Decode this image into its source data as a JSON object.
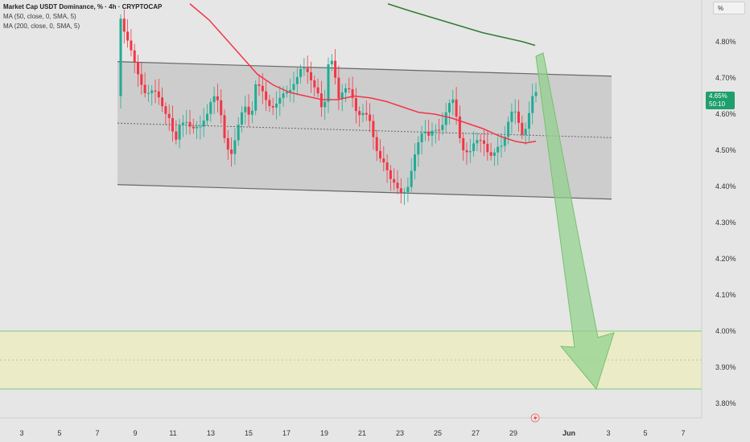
{
  "header": {
    "title": "Market Cap USDT Dominance, % · 4h · CRYPTOCAP",
    "ma50_label": "MA (50, close, 0, SMA, 5)",
    "ma200_label": "MA (200, close, 0, SMA, 5)",
    "unit_button": "%"
  },
  "last_price": {
    "value": "4.65%",
    "countdown": "50:10"
  },
  "colors": {
    "up": "#22ab94",
    "down": "#f23645",
    "ma50": "#f23645",
    "ma200": "#2e7d32",
    "channel": "#c8c8c8",
    "target_zone": "#ecebc8",
    "arrow": "#8fd18a"
  },
  "chart_data": {
    "type": "candlestick",
    "title": "Market Cap USDT Dominance, % · 4h · CRYPTOCAP",
    "y_unit": "%",
    "y_ticks": [
      "4.80%",
      "4.70%",
      "4.60%",
      "4.50%",
      "4.40%",
      "4.30%",
      "4.20%",
      "4.10%",
      "4.00%",
      "3.90%",
      "3.80%"
    ],
    "x_ticks": [
      "3",
      "5",
      "7",
      "9",
      "11",
      "13",
      "15",
      "17",
      "19",
      "21",
      "23",
      "25",
      "27",
      "29",
      "Jun",
      "3",
      "5",
      "7"
    ],
    "ylim": [
      3.78,
      4.905
    ],
    "series": [
      {
        "name": "MA (50, close, 0, SMA, 5)",
        "type": "line",
        "points": [
          [
            236,
            4.905
          ],
          [
            260,
            4.86
          ],
          [
            280,
            4.81
          ],
          [
            300,
            4.76
          ],
          [
            320,
            4.71
          ],
          [
            340,
            4.68
          ],
          [
            360,
            4.66
          ],
          [
            380,
            4.65
          ],
          [
            400,
            4.64
          ],
          [
            420,
            4.64
          ],
          [
            440,
            4.65
          ],
          [
            460,
            4.645
          ],
          [
            480,
            4.635
          ],
          [
            500,
            4.62
          ],
          [
            520,
            4.605
          ],
          [
            540,
            4.6
          ],
          [
            560,
            4.59
          ],
          [
            580,
            4.575
          ],
          [
            600,
            4.56
          ],
          [
            620,
            4.54
          ],
          [
            640,
            4.525
          ],
          [
            653,
            4.52
          ],
          [
            666,
            4.525
          ]
        ]
      },
      {
        "name": "MA (200, close, 0, SMA, 5)",
        "type": "line",
        "points": [
          [
            482,
            4.905
          ],
          [
            510,
            4.885
          ],
          [
            540,
            4.865
          ],
          [
            570,
            4.845
          ],
          [
            600,
            4.825
          ],
          [
            630,
            4.81
          ],
          [
            650,
            4.8
          ],
          [
            665,
            4.79
          ]
        ]
      }
    ],
    "candles_description": "Roughly 120 four-hour candles from the 8th to the 29th oscillating between 4.37% and 4.78% inside a slightly descending channel; last close 4.65%.",
    "annotations": {
      "channel": {
        "upper_start": [
          146,
          4.745
        ],
        "upper_end": [
          760,
          4.705
        ],
        "lower_start": [
          146,
          4.405
        ],
        "lower_end": [
          760,
          4.365
        ],
        "midline_start": [
          146,
          4.575
        ],
        "midline_end": [
          760,
          4.535
        ]
      },
      "target_zone": {
        "from": 3.84,
        "to": 4.0,
        "midline": 3.92
      },
      "projection_arrow": {
        "from": [
          668,
          4.76
        ],
        "to": [
          741,
          3.84
        ]
      }
    },
    "grid": false,
    "legend": "top-left"
  }
}
